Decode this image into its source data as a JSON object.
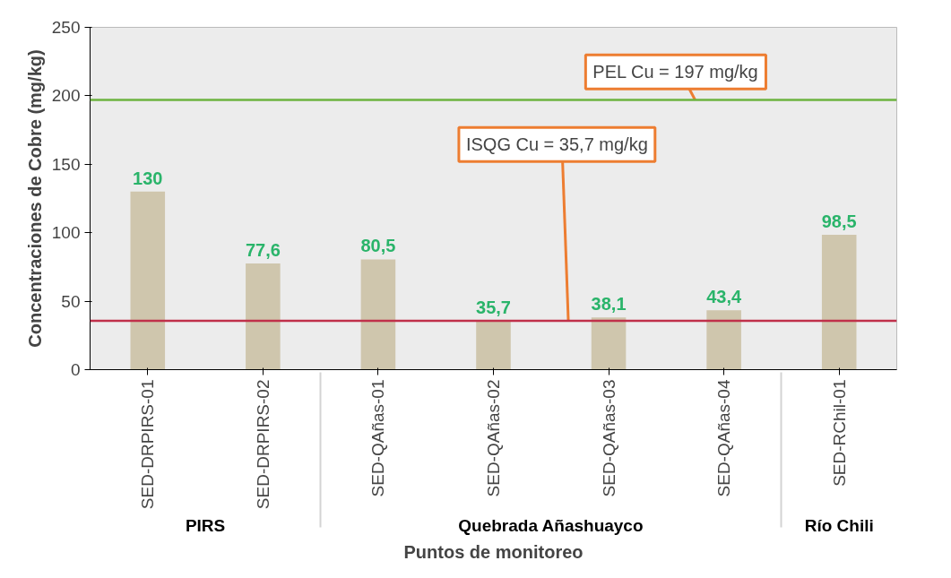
{
  "chart_data": {
    "type": "bar",
    "xlabel": "Puntos de monitoreo",
    "ylabel": "Concentraciones de Cobre (mg/kg)",
    "categories": [
      "SED-DRPIRS-01",
      "SED-DRPIRS-02",
      "SED-QAñas-01",
      "SED-QAñas-02",
      "SED-QAñas-03",
      "SED-QAñas-04",
      "SED-RChil-01"
    ],
    "values": [
      130,
      77.6,
      80.5,
      35.7,
      38.1,
      43.4,
      98.5
    ],
    "value_labels": [
      "130",
      "77,6",
      "80,5",
      "35,7",
      "38,1",
      "43,4",
      "98,5"
    ],
    "color": "#cfc6ad",
    "ylim": [
      0,
      250
    ],
    "yticks": [
      0,
      50,
      100,
      150,
      200,
      250
    ],
    "ref_lines": [
      {
        "axis": "y",
        "value": 197,
        "label": "PEL Cu = 197 mg/kg",
        "color": "#6db33f"
      },
      {
        "axis": "y",
        "value": 35.7,
        "label": "ISQG Cu = 35,7 mg/kg",
        "color": "#c0304a"
      }
    ],
    "annotations": [
      "PIRS",
      "Quebrada Añashuayco",
      "Río Chili"
    ],
    "grid": false
  }
}
